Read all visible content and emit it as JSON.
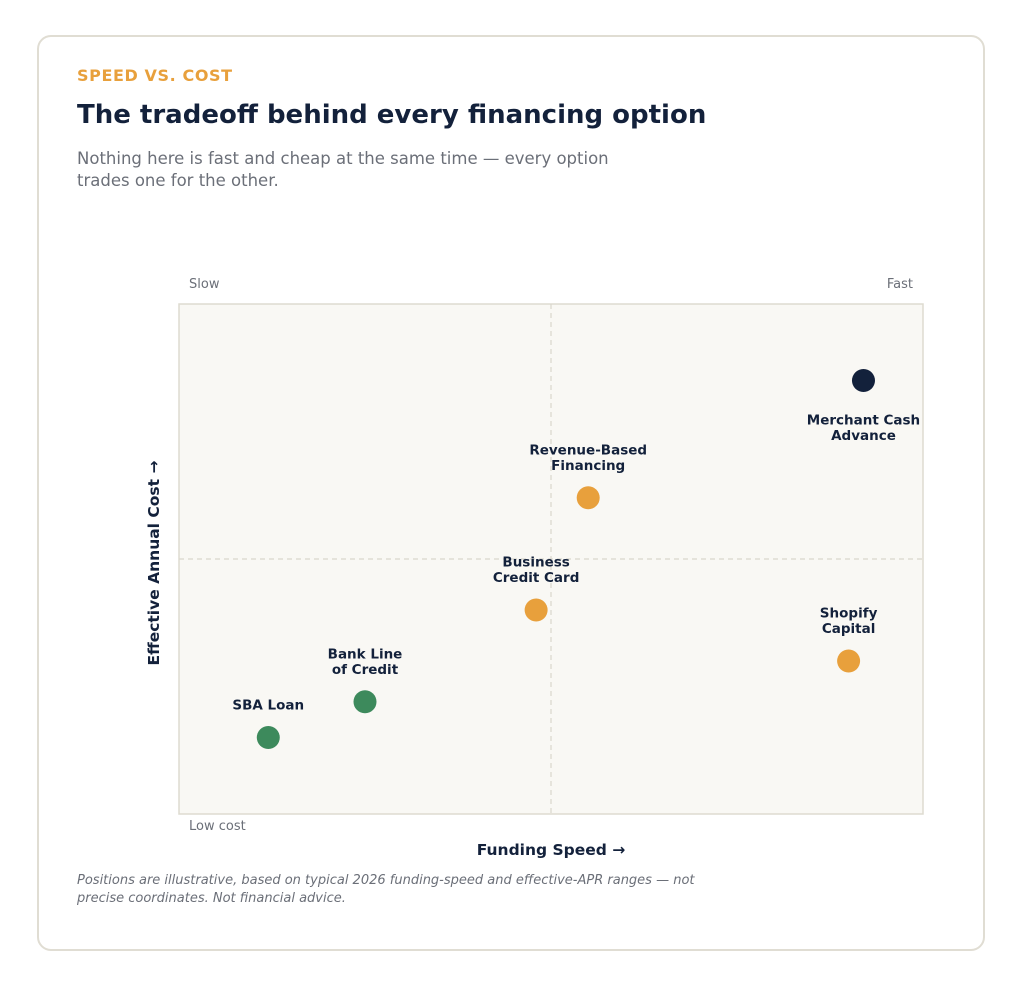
{
  "header": {
    "eyebrow": "SPEED VS. COST",
    "title": "The tradeoff behind every financing option",
    "subtitle": "Nothing here is fast and cheap at the same time — every option trades one for the other."
  },
  "footnote": "Positions are illustrative, based on typical 2026 funding-speed and effective-APR ranges — not precise coordinates. Not financial advice.",
  "colors": {
    "accent": "#e8a03c",
    "navy": "#13213b",
    "green": "#3d8a5c",
    "plot_background": "#f9f8f4",
    "plot_border": "#dedbd0"
  },
  "chart_data": {
    "type": "scatter",
    "xlabel": "Funding Speed →",
    "ylabel": "Effective Annual Cost →",
    "corner_labels": {
      "x_low": "Slow",
      "x_high": "Fast",
      "y_low": "Low cost"
    },
    "xlim": [
      0,
      100
    ],
    "ylim": [
      0,
      100
    ],
    "grid": "dashed midlines at 50",
    "points": [
      {
        "name": "SBA Loan",
        "x": 12,
        "y": 15,
        "color": "#3d8a5c",
        "label_lines": [
          "SBA Loan"
        ],
        "label_position": "above"
      },
      {
        "name": "Bank Line of Credit",
        "x": 25,
        "y": 22,
        "color": "#3d8a5c",
        "label_lines": [
          "Bank Line",
          "of Credit"
        ],
        "label_position": "above"
      },
      {
        "name": "Business Credit Card",
        "x": 48,
        "y": 40,
        "color": "#e8a03c",
        "label_lines": [
          "Business",
          "Credit Card"
        ],
        "label_position": "above"
      },
      {
        "name": "Revenue-Based Financing",
        "x": 55,
        "y": 62,
        "color": "#e8a03c",
        "label_lines": [
          "Revenue-Based",
          "Financing"
        ],
        "label_position": "above"
      },
      {
        "name": "Shopify Capital",
        "x": 90,
        "y": 30,
        "color": "#e8a03c",
        "label_lines": [
          "Shopify",
          "Capital"
        ],
        "label_position": "above"
      },
      {
        "name": "Merchant Cash Advance",
        "x": 92,
        "y": 85,
        "color": "#13213b",
        "label_lines": [
          "Merchant Cash",
          "Advance"
        ],
        "label_position": "below"
      }
    ]
  }
}
